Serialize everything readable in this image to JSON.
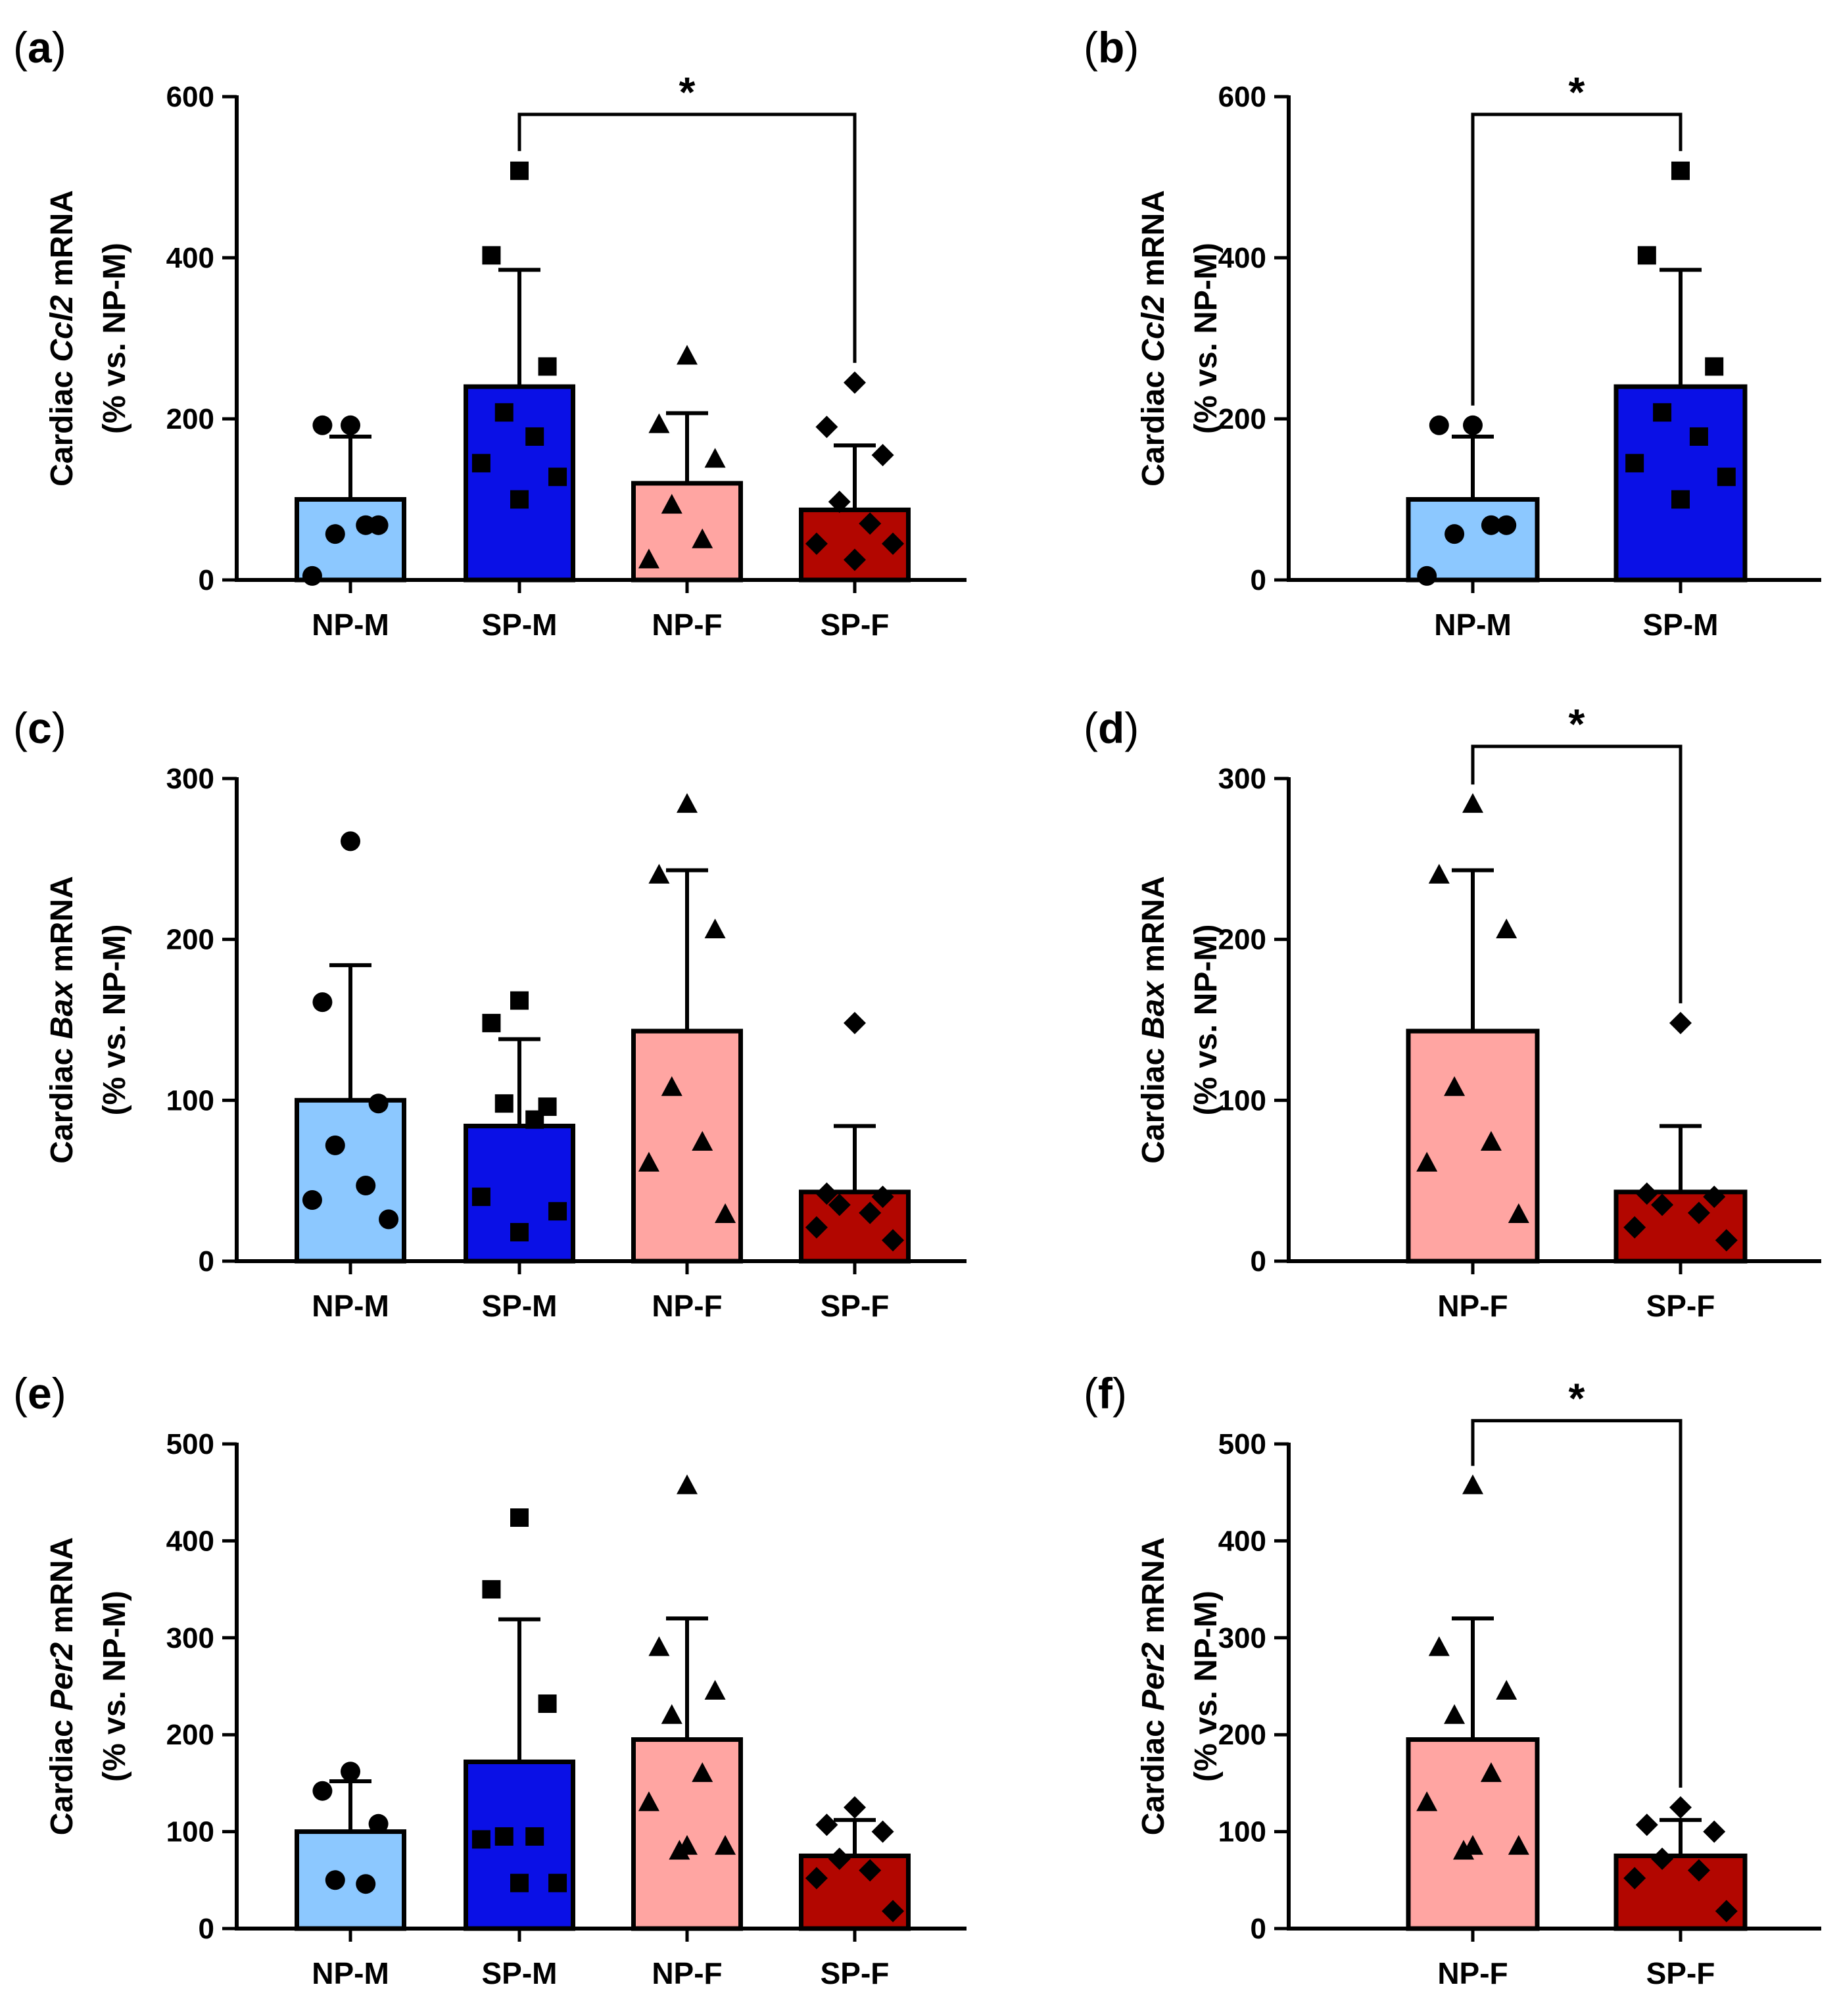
{
  "styles": {
    "bar_stroke": "#000000",
    "point_color": "#000000",
    "colors": {
      "NP-M": "#8cc8ff",
      "SP-M": "#0a10e6",
      "NP-F": "#ffa5a2",
      "SP-F": "#b20600"
    },
    "markers": {
      "NP-M": "circle",
      "SP-M": "square",
      "NP-F": "triangle",
      "SP-F": "diamond"
    }
  },
  "chart_data": [
    {
      "id": "a",
      "type": "bar",
      "panel_label": "a",
      "ylabel_parts": [
        "Cardiac ",
        "Ccl2",
        " mRNA"
      ],
      "ylabel_line2": "(% vs. NP-M)",
      "ylim": [
        0,
        600
      ],
      "yticks": [
        "0",
        "200",
        "400",
        "600"
      ],
      "categories": [
        "NP-M",
        "SP-M",
        "NP-F",
        "SP-F"
      ],
      "values": [
        100,
        240,
        120,
        87
      ],
      "error": [
        78,
        145,
        87,
        80
      ],
      "points": [
        [
          192,
          192,
          68,
          57,
          68,
          5
        ],
        [
          508,
          403,
          265,
          208,
          178,
          145,
          128,
          100
        ],
        [
          278,
          193,
          150,
          93,
          50,
          25
        ],
        [
          245,
          190,
          155,
          97,
          70,
          45,
          45,
          25
        ]
      ],
      "significance": [
        {
          "from": 1,
          "to": 3,
          "label": "*",
          "y": 578
        }
      ]
    },
    {
      "id": "b",
      "type": "bar",
      "panel_label": "b",
      "ylabel_parts": [
        "Cardiac ",
        "Ccl2",
        " mRNA"
      ],
      "ylabel_line2": "(% vs. NP-M)",
      "ylim": [
        0,
        600
      ],
      "yticks": [
        "0",
        "200",
        "400",
        "600"
      ],
      "categories": [
        "NP-M",
        "SP-M"
      ],
      "values": [
        100,
        240
      ],
      "error": [
        78,
        145
      ],
      "points": [
        [
          192,
          192,
          68,
          57,
          68,
          5
        ],
        [
          508,
          403,
          265,
          208,
          178,
          145,
          128,
          100
        ]
      ],
      "significance": [
        {
          "from": 0,
          "to": 1,
          "label": "*",
          "y": 578
        }
      ]
    },
    {
      "id": "c",
      "type": "bar",
      "panel_label": "c",
      "ylabel_parts": [
        "Cardiac ",
        "Bax",
        " mRNA"
      ],
      "ylabel_line2": "(% vs. NP-M)",
      "ylim": [
        0,
        300
      ],
      "yticks": [
        "0",
        "100",
        "200",
        "300"
      ],
      "categories": [
        "NP-M",
        "SP-M",
        "NP-F",
        "SP-F"
      ],
      "values": [
        100,
        84,
        143,
        43
      ],
      "error": [
        84,
        54,
        100,
        41
      ],
      "points": [
        [
          261,
          161,
          98,
          72,
          47,
          38,
          26
        ],
        [
          162,
          148,
          96,
          98,
          88,
          40,
          31,
          18
        ],
        [
          284,
          240,
          206,
          108,
          74,
          61,
          29
        ],
        [
          148,
          42,
          40,
          35,
          30,
          21,
          13
        ]
      ],
      "significance": []
    },
    {
      "id": "d",
      "type": "bar",
      "panel_label": "d",
      "ylabel_parts": [
        "Cardiac ",
        "Bax",
        " mRNA"
      ],
      "ylabel_line2": "(% vs. NP-M)",
      "ylim": [
        0,
        300
      ],
      "yticks": [
        "0",
        "100",
        "200",
        "300"
      ],
      "categories": [
        "NP-F",
        "SP-F"
      ],
      "values": [
        143,
        43
      ],
      "error": [
        100,
        41
      ],
      "points": [
        [
          284,
          240,
          206,
          108,
          74,
          61,
          29
        ],
        [
          148,
          42,
          40,
          35,
          30,
          21,
          13
        ]
      ],
      "significance": [
        {
          "from": 0,
          "to": 1,
          "label": "*",
          "y": 320
        }
      ]
    },
    {
      "id": "e",
      "type": "bar",
      "panel_label": "e",
      "ylabel_parts": [
        "Cardiac ",
        "Per2",
        " mRNA"
      ],
      "ylabel_line2": "(% vs. NP-M)",
      "ylim": [
        0,
        500
      ],
      "yticks": [
        "0",
        "100",
        "200",
        "300",
        "400",
        "500"
      ],
      "categories": [
        "NP-M",
        "SP-M",
        "NP-F",
        "SP-F"
      ],
      "values": [
        100,
        172,
        195,
        75
      ],
      "error": [
        52,
        147,
        125,
        37
      ],
      "points": [
        [
          162,
          142,
          108,
          50,
          46
        ],
        [
          424,
          350,
          232,
          95,
          95,
          92,
          47,
          47
        ],
        [
          457,
          290,
          245,
          220,
          160,
          130,
          85,
          85,
          80
        ],
        [
          125,
          107,
          100,
          72,
          60,
          52,
          18
        ]
      ],
      "significance": []
    },
    {
      "id": "f",
      "type": "bar",
      "panel_label": "f",
      "ylabel_parts": [
        "Cardiac ",
        "Per2",
        " mRNA"
      ],
      "ylabel_line2": "(% vs. NP-M)",
      "ylim": [
        0,
        500
      ],
      "yticks": [
        "0",
        "100",
        "200",
        "300",
        "400",
        "500"
      ],
      "categories": [
        "NP-F",
        "SP-F"
      ],
      "values": [
        195,
        75
      ],
      "error": [
        125,
        37
      ],
      "points": [
        [
          457,
          290,
          245,
          220,
          160,
          130,
          85,
          85,
          80
        ],
        [
          125,
          107,
          100,
          72,
          60,
          52,
          18
        ]
      ],
      "significance": [
        {
          "from": 0,
          "to": 1,
          "label": "*",
          "y": 524
        }
      ]
    }
  ]
}
